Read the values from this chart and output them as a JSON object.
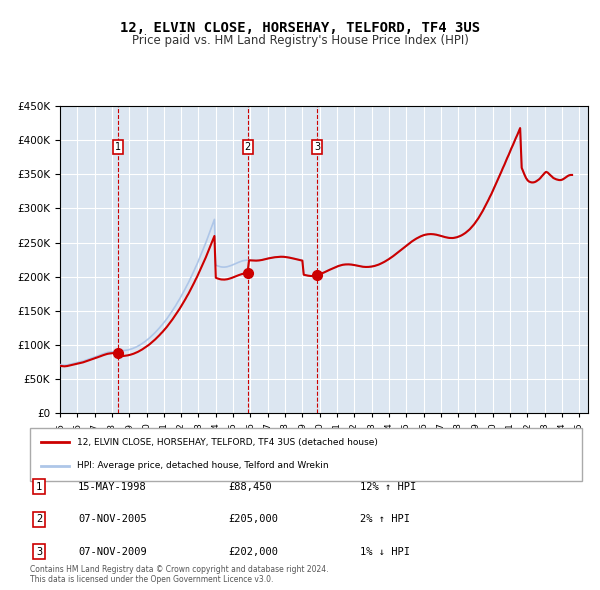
{
  "title": "12, ELVIN CLOSE, HORSEHAY, TELFORD, TF4 3US",
  "subtitle": "Price paid vs. HM Land Registry's House Price Index (HPI)",
  "ylabel": "",
  "ylim": [
    0,
    450000
  ],
  "yticks": [
    0,
    50000,
    100000,
    150000,
    200000,
    250000,
    300000,
    350000,
    400000,
    450000
  ],
  "xlim_start": 1995.0,
  "xlim_end": 2025.5,
  "bg_color": "#dce6f1",
  "plot_bg": "#dce6f1",
  "grid_color": "#ffffff",
  "legend_entries": [
    "12, ELVIN CLOSE, HORSEHAY, TELFORD, TF4 3US (detached house)",
    "HPI: Average price, detached house, Telford and Wrekin"
  ],
  "sale_line_color": "#cc0000",
  "hpi_line_color": "#aec6e8",
  "sale_dot_color": "#cc0000",
  "dashed_line_color": "#cc0000",
  "transactions": [
    {
      "num": 1,
      "date": "15-MAY-1998",
      "price": 88450,
      "year": 1998.37,
      "pct": "12%",
      "dir": "↑"
    },
    {
      "num": 2,
      "date": "07-NOV-2005",
      "price": 205000,
      "year": 2005.85,
      "pct": "2%",
      "dir": "↑"
    },
    {
      "num": 3,
      "date": "07-NOV-2009",
      "price": 202000,
      "year": 2009.85,
      "pct": "1%",
      "dir": "↓"
    }
  ],
  "footer": "Contains HM Land Registry data © Crown copyright and database right 2024.\nThis data is licensed under the Open Government Licence v3.0.",
  "hpi_years": [
    1995.0,
    1995.08,
    1995.17,
    1995.25,
    1995.33,
    1995.42,
    1995.5,
    1995.58,
    1995.67,
    1995.75,
    1995.83,
    1995.92,
    1996.0,
    1996.08,
    1996.17,
    1996.25,
    1996.33,
    1996.42,
    1996.5,
    1996.58,
    1996.67,
    1996.75,
    1996.83,
    1996.92,
    1997.0,
    1997.08,
    1997.17,
    1997.25,
    1997.33,
    1997.42,
    1997.5,
    1997.58,
    1997.67,
    1997.75,
    1997.83,
    1997.92,
    1998.0,
    1998.08,
    1998.17,
    1998.25,
    1998.33,
    1998.42,
    1998.5,
    1998.58,
    1998.67,
    1998.75,
    1998.83,
    1998.92,
    1999.0,
    1999.08,
    1999.17,
    1999.25,
    1999.33,
    1999.42,
    1999.5,
    1999.58,
    1999.67,
    1999.75,
    1999.83,
    1999.92,
    2000.0,
    2000.08,
    2000.17,
    2000.25,
    2000.33,
    2000.42,
    2000.5,
    2000.58,
    2000.67,
    2000.75,
    2000.83,
    2000.92,
    2001.0,
    2001.08,
    2001.17,
    2001.25,
    2001.33,
    2001.42,
    2001.5,
    2001.58,
    2001.67,
    2001.75,
    2001.83,
    2001.92,
    2002.0,
    2002.08,
    2002.17,
    2002.25,
    2002.33,
    2002.42,
    2002.5,
    2002.58,
    2002.67,
    2002.75,
    2002.83,
    2002.92,
    2003.0,
    2003.08,
    2003.17,
    2003.25,
    2003.33,
    2003.42,
    2003.5,
    2003.58,
    2003.67,
    2003.75,
    2003.83,
    2003.92,
    2004.0,
    2004.08,
    2004.17,
    2004.25,
    2004.33,
    2004.42,
    2004.5,
    2004.58,
    2004.67,
    2004.75,
    2004.83,
    2004.92,
    2005.0,
    2005.08,
    2005.17,
    2005.25,
    2005.33,
    2005.42,
    2005.5,
    2005.58,
    2005.67,
    2005.75,
    2005.83,
    2005.92,
    2006.0,
    2006.08,
    2006.17,
    2006.25,
    2006.33,
    2006.42,
    2006.5,
    2006.58,
    2006.67,
    2006.75,
    2006.83,
    2006.92,
    2007.0,
    2007.08,
    2007.17,
    2007.25,
    2007.33,
    2007.42,
    2007.5,
    2007.58,
    2007.67,
    2007.75,
    2007.83,
    2007.92,
    2008.0,
    2008.08,
    2008.17,
    2008.25,
    2008.33,
    2008.42,
    2008.5,
    2008.58,
    2008.67,
    2008.75,
    2008.83,
    2008.92,
    2009.0,
    2009.08,
    2009.17,
    2009.25,
    2009.33,
    2009.42,
    2009.5,
    2009.58,
    2009.67,
    2009.75,
    2009.83,
    2009.92,
    2010.0,
    2010.08,
    2010.17,
    2010.25,
    2010.33,
    2010.42,
    2010.5,
    2010.58,
    2010.67,
    2010.75,
    2010.83,
    2010.92,
    2011.0,
    2011.08,
    2011.17,
    2011.25,
    2011.33,
    2011.42,
    2011.5,
    2011.58,
    2011.67,
    2011.75,
    2011.83,
    2011.92,
    2012.0,
    2012.08,
    2012.17,
    2012.25,
    2012.33,
    2012.42,
    2012.5,
    2012.58,
    2012.67,
    2012.75,
    2012.83,
    2012.92,
    2013.0,
    2013.08,
    2013.17,
    2013.25,
    2013.33,
    2013.42,
    2013.5,
    2013.58,
    2013.67,
    2013.75,
    2013.83,
    2013.92,
    2014.0,
    2014.08,
    2014.17,
    2014.25,
    2014.33,
    2014.42,
    2014.5,
    2014.58,
    2014.67,
    2014.75,
    2014.83,
    2014.92,
    2015.0,
    2015.08,
    2015.17,
    2015.25,
    2015.33,
    2015.42,
    2015.5,
    2015.58,
    2015.67,
    2015.75,
    2015.83,
    2015.92,
    2016.0,
    2016.08,
    2016.17,
    2016.25,
    2016.33,
    2016.42,
    2016.5,
    2016.58,
    2016.67,
    2016.75,
    2016.83,
    2016.92,
    2017.0,
    2017.08,
    2017.17,
    2017.25,
    2017.33,
    2017.42,
    2017.5,
    2017.58,
    2017.67,
    2017.75,
    2017.83,
    2017.92,
    2018.0,
    2018.08,
    2018.17,
    2018.25,
    2018.33,
    2018.42,
    2018.5,
    2018.58,
    2018.67,
    2018.75,
    2018.83,
    2018.92,
    2019.0,
    2019.08,
    2019.17,
    2019.25,
    2019.33,
    2019.42,
    2019.5,
    2019.58,
    2019.67,
    2019.75,
    2019.83,
    2019.92,
    2020.0,
    2020.08,
    2020.17,
    2020.25,
    2020.33,
    2020.42,
    2020.5,
    2020.58,
    2020.67,
    2020.75,
    2020.83,
    2020.92,
    2021.0,
    2021.08,
    2021.17,
    2021.25,
    2021.33,
    2021.42,
    2021.5,
    2021.58,
    2021.67,
    2021.75,
    2021.83,
    2021.92,
    2022.0,
    2022.08,
    2022.17,
    2022.25,
    2022.33,
    2022.42,
    2022.5,
    2022.58,
    2022.67,
    2022.75,
    2022.83,
    2022.92,
    2023.0,
    2023.08,
    2023.17,
    2023.25,
    2023.33,
    2023.42,
    2023.5,
    2023.58,
    2023.67,
    2023.75,
    2023.83,
    2023.92,
    2024.0,
    2024.08,
    2024.17,
    2024.25,
    2024.33,
    2024.42,
    2024.5,
    2024.58
  ],
  "hpi_values": [
    71000,
    70500,
    70200,
    70000,
    70200,
    70500,
    71000,
    71500,
    72000,
    72500,
    73000,
    73500,
    74000,
    74500,
    75000,
    75500,
    76000,
    76800,
    77500,
    78200,
    79000,
    79800,
    80500,
    81200,
    82000,
    82800,
    83600,
    84400,
    85200,
    86000,
    86800,
    87500,
    88200,
    88800,
    89200,
    89500,
    89700,
    89900,
    90100,
    90300,
    90500,
    90700,
    90900,
    91200,
    91500,
    91800,
    92200,
    92500,
    93000,
    93600,
    94300,
    95100,
    96000,
    97000,
    98100,
    99300,
    100600,
    102000,
    103500,
    105000,
    106600,
    108300,
    110100,
    112000,
    114000,
    116000,
    118100,
    120300,
    122600,
    125000,
    127500,
    130000,
    132600,
    135300,
    138100,
    141000,
    144000,
    147100,
    150300,
    153600,
    157000,
    160500,
    164000,
    167600,
    171300,
    175100,
    179000,
    183000,
    187100,
    191300,
    195600,
    200000,
    204500,
    209100,
    213800,
    218600,
    223500,
    228500,
    233600,
    238800,
    244100,
    249500,
    255000,
    260600,
    266300,
    272100,
    278000,
    284000,
    217000,
    216000,
    215200,
    214600,
    214200,
    214000,
    214000,
    214200,
    214600,
    215200,
    215900,
    216700,
    217600,
    218500,
    219400,
    220300,
    221200,
    222100,
    222800,
    223400,
    223800,
    224100,
    224200,
    224200,
    224100,
    224000,
    223800,
    223700,
    223700,
    223800,
    224000,
    224300,
    224700,
    225200,
    225700,
    226200,
    226700,
    227200,
    227600,
    228000,
    228400,
    228700,
    228900,
    229100,
    229300,
    229400,
    229400,
    229300,
    229100,
    228800,
    228500,
    228100,
    227700,
    227200,
    226700,
    226200,
    225700,
    225200,
    224700,
    224200,
    223700,
    203000,
    202500,
    202000,
    201600,
    201300,
    201100,
    201100,
    201300,
    201700,
    202200,
    202900,
    203700,
    204500,
    205400,
    206300,
    207300,
    208300,
    209300,
    210300,
    211300,
    212300,
    213200,
    214100,
    215000,
    215800,
    216500,
    217100,
    217600,
    217900,
    218100,
    218200,
    218200,
    218100,
    217900,
    217600,
    217200,
    216800,
    216300,
    215800,
    215400,
    215000,
    214700,
    214500,
    214400,
    214400,
    214500,
    214700,
    215000,
    215400,
    215900,
    216500,
    217200,
    218000,
    218900,
    219900,
    221000,
    222100,
    223300,
    224600,
    226000,
    227400,
    228900,
    230400,
    232000,
    233600,
    235300,
    237000,
    238700,
    240400,
    242100,
    243800,
    245500,
    247200,
    248800,
    250400,
    251900,
    253300,
    254700,
    256000,
    257200,
    258300,
    259300,
    260200,
    261000,
    261600,
    262100,
    262400,
    262600,
    262700,
    262600,
    262400,
    262100,
    261700,
    261200,
    260600,
    260000,
    259400,
    258800,
    258200,
    257700,
    257300,
    257000,
    256900,
    256900,
    257100,
    257500,
    258000,
    258700,
    259500,
    260500,
    261600,
    262900,
    264400,
    266000,
    267800,
    269800,
    272000,
    274400,
    277000,
    279800,
    282800,
    286000,
    289400,
    293000,
    296700,
    300600,
    304600,
    308700,
    312900,
    317200,
    321600,
    326100,
    330700,
    335400,
    340100,
    344900,
    349700,
    354600,
    359500,
    364400,
    369300,
    374200,
    379100,
    384000,
    388900,
    393800,
    398700,
    403600,
    408500,
    413400,
    418300,
    360000,
    355000,
    350000,
    345000,
    342000,
    340000,
    339000,
    338500,
    338500,
    339000,
    340000,
    341500,
    343000,
    345000,
    347500,
    350000,
    352500,
    354000,
    353000,
    351000,
    349000,
    347000,
    345000,
    344000,
    343000,
    342500,
    342000,
    342000,
    342500,
    343500,
    345000,
    346500,
    348000,
    349000,
    349500,
    349500,
    349000,
    348000,
    347000,
    346000,
    345000,
    344000,
    343000,
    342500,
    343000,
    344000,
    345500,
    347000,
    349000,
    351000,
    353000,
    355000,
    357000,
    358500,
    359500,
    360000
  ]
}
